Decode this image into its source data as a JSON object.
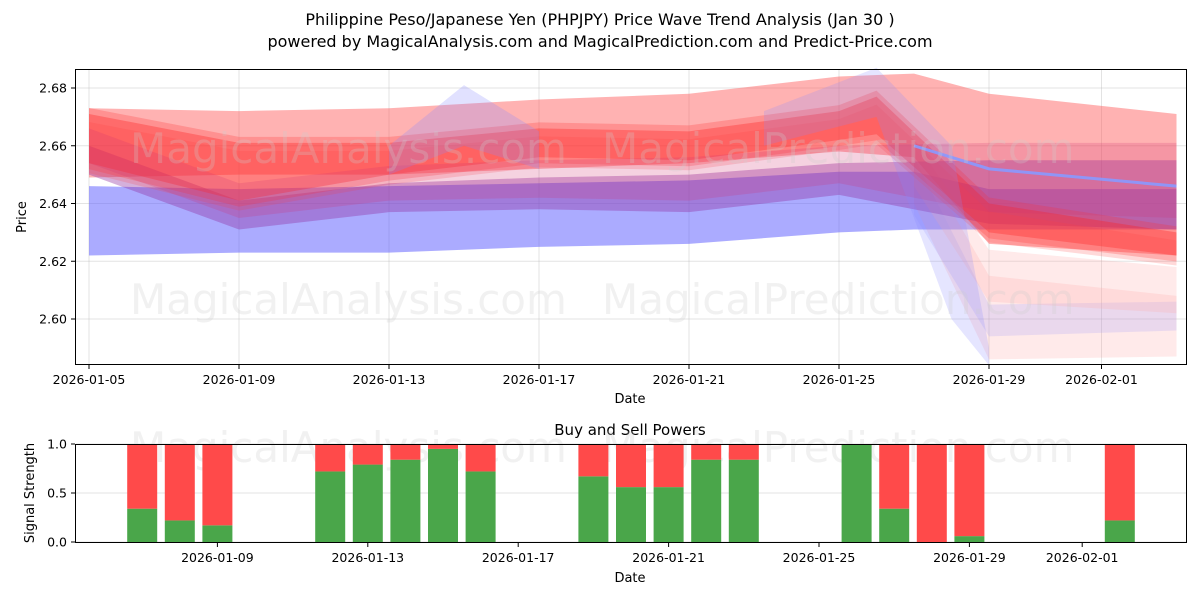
{
  "header": {
    "title": "Philippine Peso/Japanese Yen (PHPJPY) Price Wave Trend Analysis (Jan 30 )",
    "subtitle": "powered by MagicalAnalysis.com and MagicalPrediction.com and Predict-Price.com"
  },
  "watermarks": [
    "MagicalAnalysis.com",
    "MagicalPrediction.com"
  ],
  "colors": {
    "buy": "#4aa64a",
    "sell": "#ff4a4a",
    "wave_red": "#ff0000",
    "wave_blue": "#0000ff"
  },
  "chart_data": [
    {
      "type": "area",
      "title": "",
      "xlabel": "Date",
      "ylabel": "Price",
      "ylim": [
        2.584,
        2.687
      ],
      "grid": true,
      "x_ticks": [
        "2026-01-05",
        "2026-01-09",
        "2026-01-13",
        "2026-01-17",
        "2026-01-21",
        "2026-01-25",
        "2026-01-29",
        "2026-02-01"
      ],
      "y_ticks": [
        "2.60",
        "2.62",
        "2.64",
        "2.66",
        "2.68"
      ],
      "series": [
        {
          "name": "red wave band (upper envelope)",
          "color": "#ff0000",
          "x": [
            "2026-01-05",
            "2026-01-09",
            "2026-01-13",
            "2026-01-17",
            "2026-01-21",
            "2026-01-25",
            "2026-01-27",
            "2026-01-29",
            "2026-02-03"
          ],
          "upper": [
            2.673,
            2.672,
            2.673,
            2.676,
            2.678,
            2.684,
            2.685,
            2.678,
            2.671
          ],
          "lower": [
            2.649,
            2.65,
            2.65,
            2.652,
            2.654,
            2.658,
            2.656,
            2.626,
            2.622
          ]
        },
        {
          "name": "red wave core",
          "color": "#ff0000",
          "x": [
            "2026-01-05",
            "2026-01-09",
            "2026-01-13",
            "2026-01-17",
            "2026-01-21",
            "2026-01-25",
            "2026-01-26",
            "2026-01-29",
            "2026-02-03"
          ],
          "upper": [
            2.671,
            2.661,
            2.661,
            2.666,
            2.665,
            2.672,
            2.677,
            2.64,
            2.63
          ],
          "lower": [
            2.654,
            2.641,
            2.65,
            2.656,
            2.655,
            2.662,
            2.664,
            2.63,
            2.622
          ]
        },
        {
          "name": "purple wave band",
          "color": "#8040a0",
          "x": [
            "2026-01-05",
            "2026-01-09",
            "2026-01-13",
            "2026-01-17",
            "2026-01-21",
            "2026-01-25",
            "2026-01-29",
            "2026-02-03"
          ],
          "upper": [
            2.66,
            2.641,
            2.647,
            2.649,
            2.65,
            2.654,
            2.655,
            2.655
          ],
          "lower": [
            2.65,
            2.631,
            2.637,
            2.638,
            2.637,
            2.643,
            2.633,
            2.631
          ]
        },
        {
          "name": "blue wave band",
          "color": "#0000ff",
          "x": [
            "2026-01-05",
            "2026-01-09",
            "2026-01-13",
            "2026-01-17",
            "2026-01-21",
            "2026-01-25",
            "2026-01-27",
            "2026-01-29",
            "2026-02-03"
          ],
          "upper": [
            2.646,
            2.645,
            2.646,
            2.647,
            2.648,
            2.651,
            2.651,
            2.645,
            2.645
          ],
          "lower": [
            2.622,
            2.623,
            2.623,
            2.625,
            2.626,
            2.63,
            2.631,
            2.631,
            2.631
          ]
        },
        {
          "name": "faded projection bands (drop after Jan 27)",
          "color": "#ffaaaa",
          "x": [
            "2026-01-27",
            "2026-01-29",
            "2026-02-03"
          ],
          "upper": [
            2.66,
            2.615,
            2.608
          ],
          "lower": [
            2.64,
            2.586,
            2.587
          ]
        },
        {
          "name": "blue line",
          "color": "#8899ff",
          "x": [
            "2026-01-27",
            "2026-01-29",
            "2026-02-03"
          ],
          "values": [
            2.66,
            2.652,
            2.646
          ]
        }
      ]
    },
    {
      "type": "bar",
      "title": "Buy and Sell Powers",
      "xlabel": "Date",
      "ylabel": "Signal Strength",
      "ylim": [
        0,
        1.0
      ],
      "grid": true,
      "stacked": true,
      "x_ticks": [
        "2026-01-09",
        "2026-01-13",
        "2026-01-17",
        "2026-01-21",
        "2026-01-25",
        "2026-01-29",
        "2026-02-01"
      ],
      "y_ticks": [
        "0.0",
        "0.5",
        "1.0"
      ],
      "categories": [
        "2026-01-07",
        "2026-01-08",
        "2026-01-09",
        "2026-01-12",
        "2026-01-13",
        "2026-01-14",
        "2026-01-15",
        "2026-01-16",
        "2026-01-19",
        "2026-01-20",
        "2026-01-21",
        "2026-01-22",
        "2026-01-23",
        "2026-01-26",
        "2026-01-27",
        "2026-01-28",
        "2026-01-29",
        "2026-02-02"
      ],
      "series": [
        {
          "name": "Buy",
          "color": "#4aa64a",
          "values": [
            0.34,
            0.22,
            0.17,
            0.72,
            0.79,
            0.84,
            0.95,
            0.72,
            0.67,
            0.56,
            0.56,
            0.84,
            0.84,
            1.0,
            0.34,
            0.0,
            0.06,
            0.22
          ]
        },
        {
          "name": "Sell",
          "color": "#ff4a4a",
          "values": [
            0.66,
            0.78,
            0.83,
            0.28,
            0.21,
            0.16,
            0.05,
            0.28,
            0.33,
            0.44,
            0.44,
            0.16,
            0.16,
            0.0,
            0.66,
            1.0,
            0.94,
            0.78
          ]
        }
      ]
    }
  ]
}
